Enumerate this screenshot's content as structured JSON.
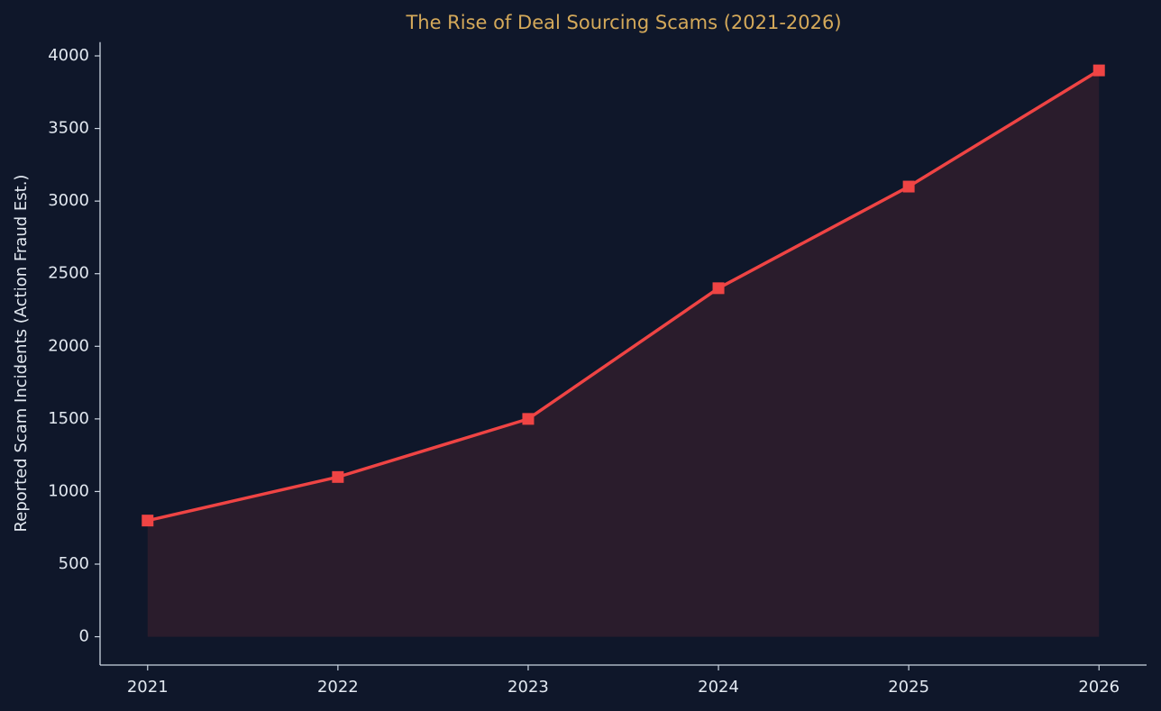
{
  "chart_data": {
    "type": "line",
    "title": "The Rise of Deal Sourcing Scams (2021-2026)",
    "y_label": "Reported Scam Incidents (Action Fraud Est.)",
    "x": [
      2021,
      2022,
      2023,
      2024,
      2025,
      2026
    ],
    "series": [
      {
        "color": "#ef4444",
        "values": [
          800,
          1100,
          1500,
          2400,
          3100,
          3900
        ]
      }
    ],
    "fill": true,
    "marker": "square",
    "xlim": [
      2020.75,
      2026.25
    ],
    "xticks": [
      2021,
      2022,
      2023,
      2024,
      2025,
      2026
    ],
    "ylim": [
      -195,
      4095
    ],
    "yticks": [
      0,
      500,
      1000,
      1500,
      2000,
      2500,
      3000,
      3500,
      4000
    ],
    "grid": false
  }
}
